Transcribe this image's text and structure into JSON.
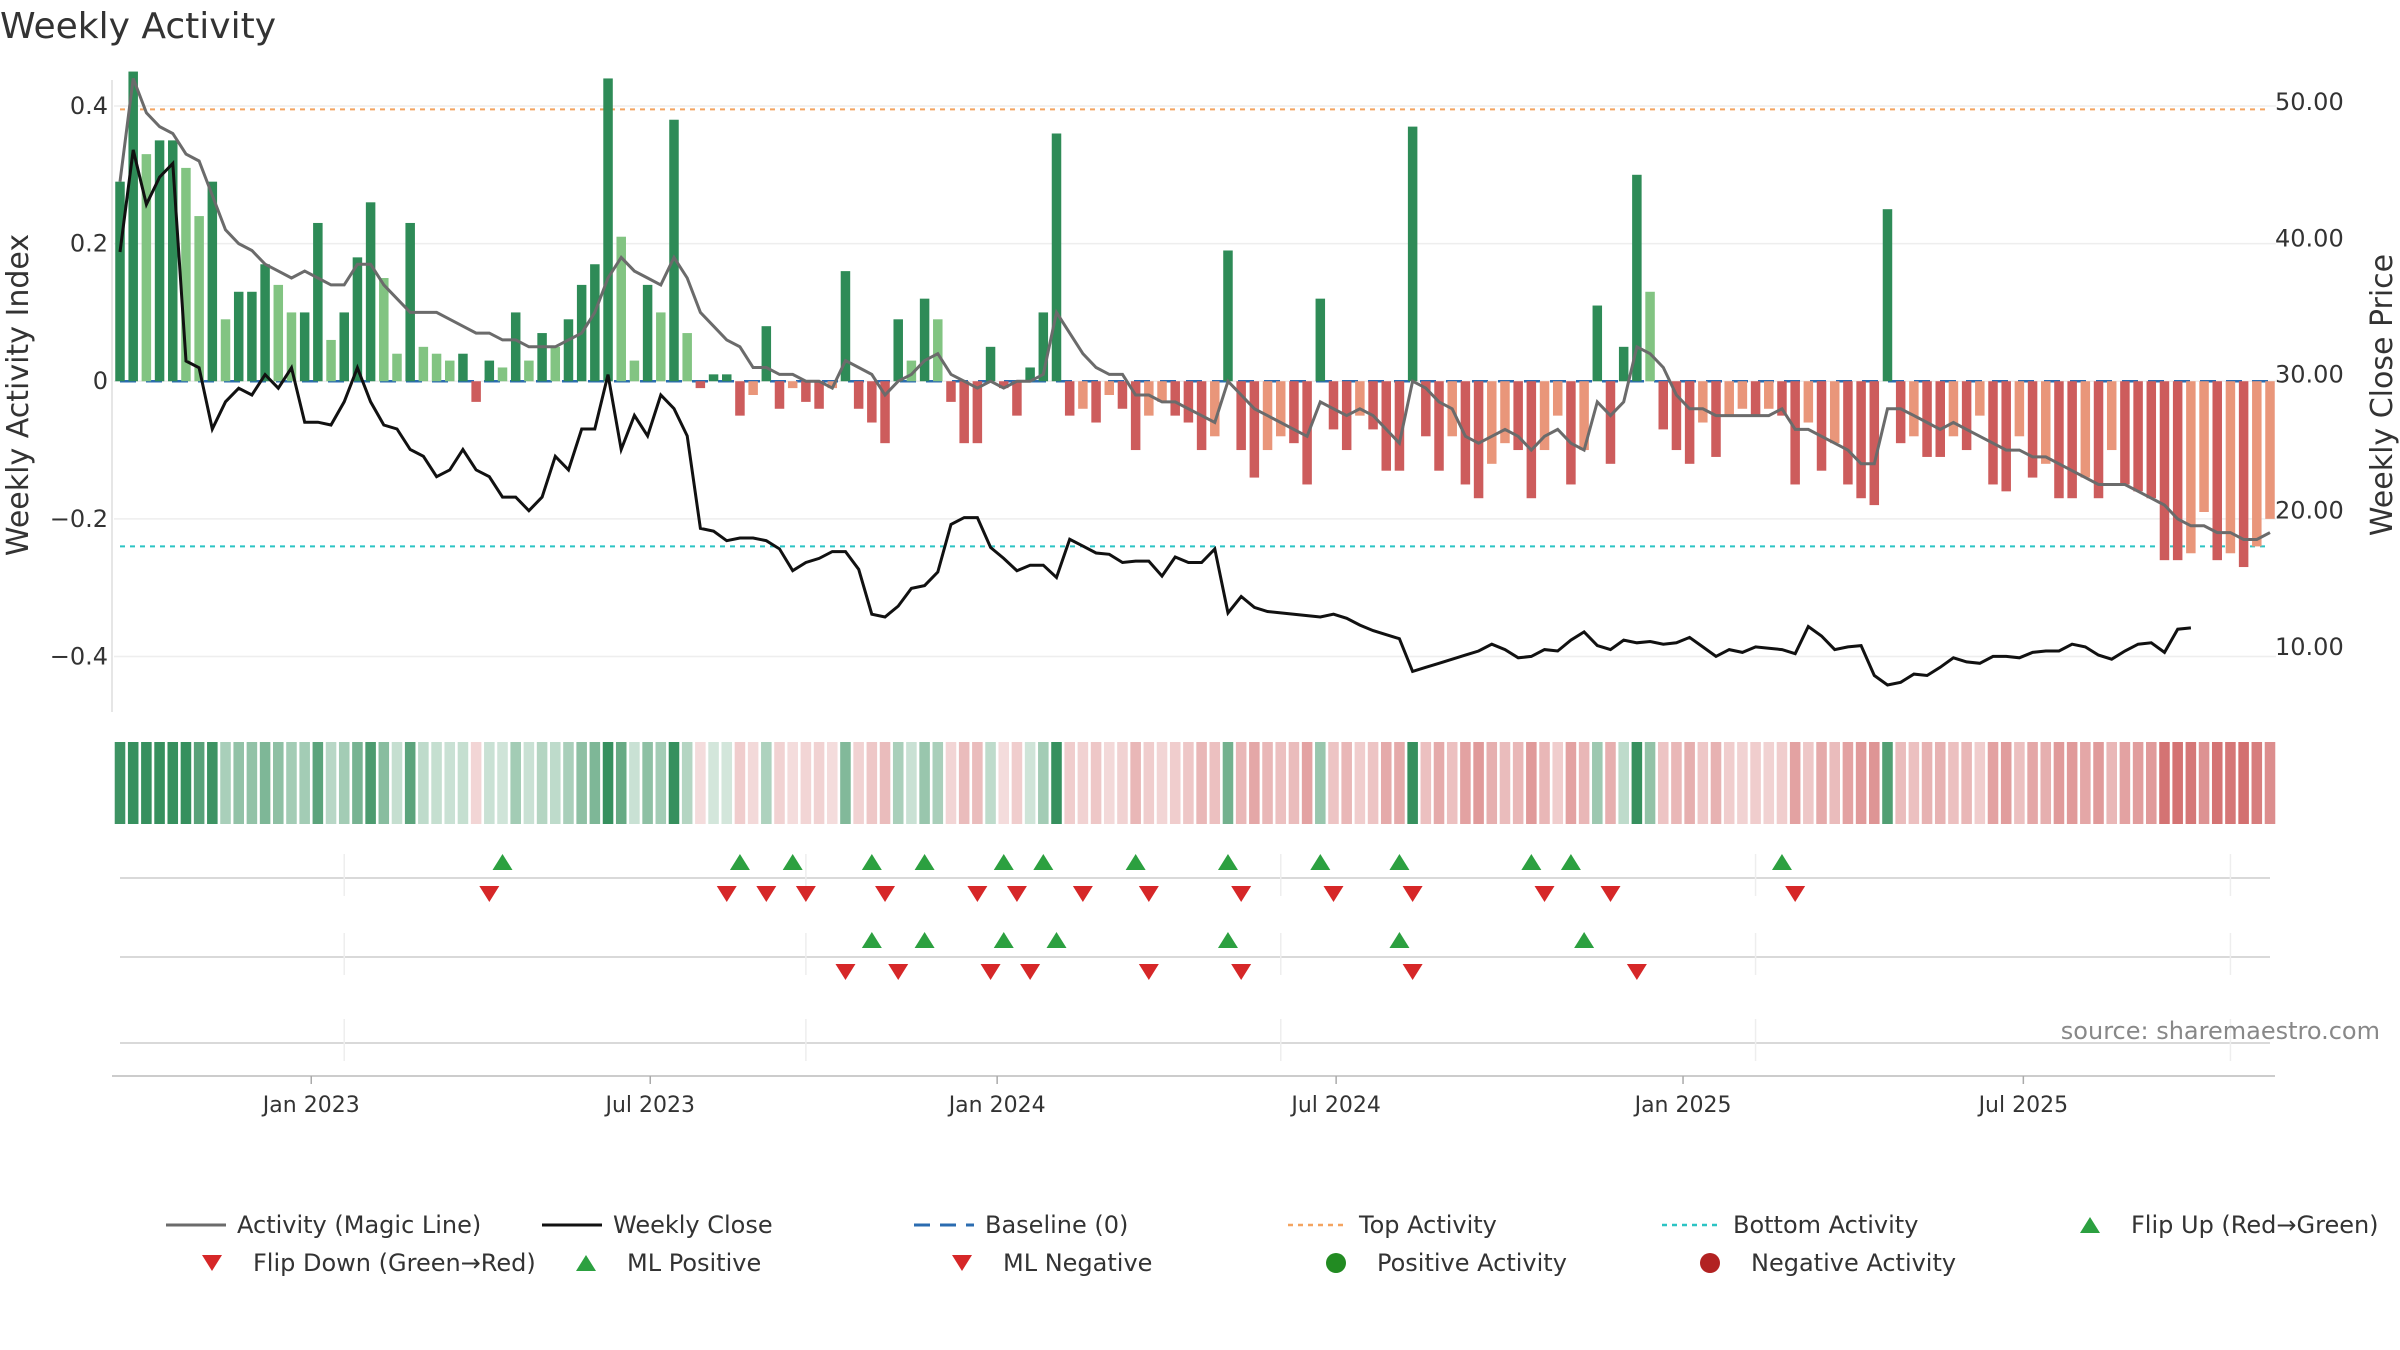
{
  "chart_data": {
    "type": "bar",
    "title": "Weekly Activity",
    "ylabel_left": "Weekly Activity Index",
    "ylabel_right": "Weekly Close Price",
    "left_ticks": [
      0.4,
      0.2,
      0,
      -0.2,
      -0.4
    ],
    "left_tick_labels": [
      "0.4",
      "0.2",
      "0",
      "−0.2",
      "−0.4"
    ],
    "left_range": [
      -0.485,
      0.445
    ],
    "right_ticks": [
      50,
      40,
      30,
      20,
      10
    ],
    "right_tick_labels": [
      "50.00",
      "40.00",
      "30.00",
      "20.00",
      "10.00"
    ],
    "right_range": [
      5,
      52
    ],
    "date_labels": [
      "Jan 2023",
      "Jul 2023",
      "Jan 2024",
      "Jul 2024",
      "Jan 2025",
      "Jul 2025"
    ],
    "date_label_weeks": [
      14.5,
      40.2,
      66.5,
      92.2,
      118.5,
      144.3
    ],
    "top_activity": 0.395,
    "bottom_activity": -0.24,
    "activity": [
      0.29,
      0.45,
      0.33,
      0.35,
      0.35,
      0.31,
      0.24,
      0.29,
      0.09,
      0.13,
      0.13,
      0.17,
      0.14,
      0.1,
      0.1,
      0.23,
      0.06,
      0.1,
      0.18,
      0.26,
      0.15,
      0.04,
      0.23,
      0.05,
      0.04,
      0.03,
      0.04,
      -0.03,
      0.03,
      0.02,
      0.1,
      0.03,
      0.07,
      0.05,
      0.09,
      0.14,
      0.17,
      0.44,
      0.21,
      0.03,
      0.14,
      0.1,
      0.38,
      0.07,
      -0.01,
      0.01,
      0.01,
      -0.05,
      -0.02,
      0.08,
      -0.04,
      -0.01,
      -0.03,
      -0.04,
      -0.01,
      0.16,
      -0.04,
      -0.06,
      -0.09,
      0.09,
      0.03,
      0.12,
      0.09,
      -0.03,
      -0.09,
      -0.09,
      0.05,
      -0.01,
      -0.05,
      0.02,
      0.1,
      0.36,
      -0.05,
      -0.04,
      -0.06,
      -0.02,
      -0.04,
      -0.1,
      -0.05,
      -0.03,
      -0.05,
      -0.06,
      -0.1,
      -0.08,
      0.19,
      -0.1,
      -0.14,
      -0.1,
      -0.08,
      -0.09,
      -0.15,
      0.12,
      -0.07,
      -0.1,
      -0.05,
      -0.07,
      -0.13,
      -0.13,
      0.37,
      -0.08,
      -0.13,
      -0.08,
      -0.15,
      -0.17,
      -0.12,
      -0.09,
      -0.1,
      -0.17,
      -0.1,
      -0.05,
      -0.15,
      -0.1,
      0.11,
      -0.12,
      0.05,
      0.3,
      0.13,
      -0.07,
      -0.1,
      -0.12,
      -0.06,
      -0.11,
      -0.05,
      -0.04,
      -0.05,
      -0.04,
      -0.05,
      -0.15,
      -0.06,
      -0.13,
      -0.09,
      -0.15,
      -0.17,
      -0.18,
      0.25,
      -0.09,
      -0.08,
      -0.11,
      -0.11,
      -0.08,
      -0.1,
      -0.05,
      -0.15,
      -0.16,
      -0.08,
      -0.14,
      -0.12,
      -0.17,
      -0.17,
      -0.14,
      -0.17,
      -0.1,
      -0.15,
      -0.16,
      -0.17,
      -0.26,
      -0.26,
      -0.25,
      -0.19,
      -0.26,
      -0.25,
      -0.27,
      -0.24,
      -0.2
    ],
    "activity_magic_line": [
      0.29,
      0.44,
      0.39,
      0.37,
      0.36,
      0.33,
      0.32,
      0.27,
      0.22,
      0.2,
      0.19,
      0.17,
      0.16,
      0.15,
      0.16,
      0.15,
      0.14,
      0.14,
      0.17,
      0.17,
      0.14,
      0.12,
      0.1,
      0.1,
      0.1,
      0.09,
      0.08,
      0.07,
      0.07,
      0.06,
      0.06,
      0.05,
      0.05,
      0.05,
      0.06,
      0.07,
      0.1,
      0.15,
      0.18,
      0.16,
      0.15,
      0.14,
      0.18,
      0.15,
      0.1,
      0.08,
      0.06,
      0.05,
      0.02,
      0.02,
      0.01,
      0.01,
      0.0,
      0.0,
      -0.01,
      0.03,
      0.02,
      0.01,
      -0.02,
      0.0,
      0.01,
      0.03,
      0.04,
      0.01,
      0.0,
      -0.01,
      0.0,
      -0.01,
      0.0,
      0.0,
      0.01,
      0.1,
      0.07,
      0.04,
      0.02,
      0.01,
      0.01,
      -0.02,
      -0.02,
      -0.03,
      -0.03,
      -0.04,
      -0.05,
      -0.06,
      0.0,
      -0.02,
      -0.04,
      -0.05,
      -0.06,
      -0.07,
      -0.08,
      -0.03,
      -0.04,
      -0.05,
      -0.04,
      -0.05,
      -0.07,
      -0.09,
      0.0,
      -0.01,
      -0.03,
      -0.04,
      -0.08,
      -0.09,
      -0.08,
      -0.07,
      -0.08,
      -0.1,
      -0.08,
      -0.07,
      -0.09,
      -0.1,
      -0.03,
      -0.05,
      -0.03,
      0.05,
      0.04,
      0.02,
      -0.02,
      -0.04,
      -0.04,
      -0.05,
      -0.05,
      -0.05,
      -0.05,
      -0.05,
      -0.04,
      -0.07,
      -0.07,
      -0.08,
      -0.09,
      -0.1,
      -0.12,
      -0.12,
      -0.04,
      -0.04,
      -0.05,
      -0.06,
      -0.07,
      -0.06,
      -0.07,
      -0.08,
      -0.09,
      -0.1,
      -0.1,
      -0.11,
      -0.11,
      -0.12,
      -0.13,
      -0.14,
      -0.15,
      -0.15,
      -0.15,
      -0.16,
      -0.17,
      -0.18,
      -0.2,
      -0.21,
      -0.21,
      -0.22,
      -0.22,
      -0.23,
      -0.23,
      -0.22
    ],
    "weekly_close": [
      39,
      46.5,
      42.5,
      44.5,
      45.5,
      31,
      30.5,
      26,
      28,
      29,
      28.5,
      30,
      29,
      30.5,
      26.5,
      26.5,
      26.3,
      28,
      30.5,
      28,
      26.3,
      26,
      24.5,
      24,
      22.5,
      23,
      24.5,
      23,
      22.5,
      21,
      21,
      20,
      21,
      24,
      23,
      26,
      26,
      30,
      24.5,
      27,
      25.5,
      28.5,
      27.5,
      25.5,
      18.7,
      18.5,
      17.8,
      18,
      18,
      17.8,
      17.2,
      15.6,
      16.2,
      16.5,
      17,
      17,
      15.7,
      12.4,
      12.2,
      13,
      14.3,
      14.5,
      15.5,
      19,
      19.5,
      19.5,
      17.3,
      16.5,
      15.6,
      16,
      16,
      15.1,
      17.9,
      17.4,
      16.9,
      16.8,
      16.2,
      16.3,
      16.3,
      15.2,
      16.6,
      16.2,
      16.2,
      17.2,
      12.5,
      13.7,
      12.9,
      12.6,
      12.5,
      12.4,
      12.3,
      12.2,
      12.4,
      12.1,
      11.6,
      11.2,
      10.9,
      10.6,
      8.2,
      8.5,
      8.8,
      9.1,
      9.4,
      9.7,
      10.2,
      9.8,
      9.2,
      9.3,
      9.8,
      9.7,
      10.5,
      11.1,
      10.1,
      9.8,
      10.5,
      10.3,
      10.4,
      10.2,
      10.3,
      10.7,
      10,
      9.3,
      9.8,
      9.6,
      10,
      9.9,
      9.8,
      9.5,
      11.5,
      10.8,
      9.8,
      10,
      10.1,
      7.9,
      7.2,
      7.4,
      8,
      7.9,
      8.5,
      9.2,
      8.9,
      8.8,
      9.3,
      9.3,
      9.2,
      9.6,
      9.7,
      9.7,
      10.2,
      10,
      9.4,
      9.1,
      9.7,
      10.2,
      10.3,
      9.6,
      11.3,
      11.4
    ],
    "flip_up_weeks": [
      29,
      47,
      51,
      57,
      61,
      67,
      70,
      77,
      84,
      91,
      97,
      107,
      110,
      126
    ],
    "flip_down_weeks": [
      28,
      46,
      49,
      52,
      58,
      65,
      68,
      73,
      78,
      85,
      92,
      98,
      108,
      113,
      127
    ],
    "ml_positive_weeks": [
      57,
      61,
      67,
      71,
      84,
      97,
      111
    ],
    "ml_negative_weeks": [
      55,
      59,
      66,
      69,
      78,
      85,
      98,
      115
    ],
    "colors": {
      "positive_strong": "#2e8b57",
      "positive_light": "#82c482",
      "negative_strong": "#cd5c5c",
      "negative_light": "#e9967a",
      "magic_line": "#6b6b6b",
      "weekly_close": "#111111",
      "baseline": "#2b6cb0",
      "top_activity": "#f4a460",
      "bottom_activity": "#2bc4c4",
      "marker_green": "#2ca040",
      "marker_red": "#d62728"
    }
  },
  "legend": [
    {
      "label": "Activity (Magic Line)",
      "kind": "line-gray"
    },
    {
      "label": "Weekly Close",
      "kind": "line-black"
    },
    {
      "label": "Baseline (0)",
      "kind": "dash-blue"
    },
    {
      "label": "Top Activity",
      "kind": "dot-orange"
    },
    {
      "label": "Bottom Activity",
      "kind": "dot-cyan"
    },
    {
      "label": "Flip Up (Red→Green)",
      "kind": "tri-up"
    },
    {
      "label": "Flip Down (Green→Red)",
      "kind": "tri-down"
    },
    {
      "label": "ML Positive",
      "kind": "tri-up"
    },
    {
      "label": "ML Negative",
      "kind": "tri-down"
    },
    {
      "label": "Positive Activity",
      "kind": "dot-green"
    },
    {
      "label": "Negative Activity",
      "kind": "dot-red"
    }
  ],
  "source": "source: sharemaestro.com"
}
